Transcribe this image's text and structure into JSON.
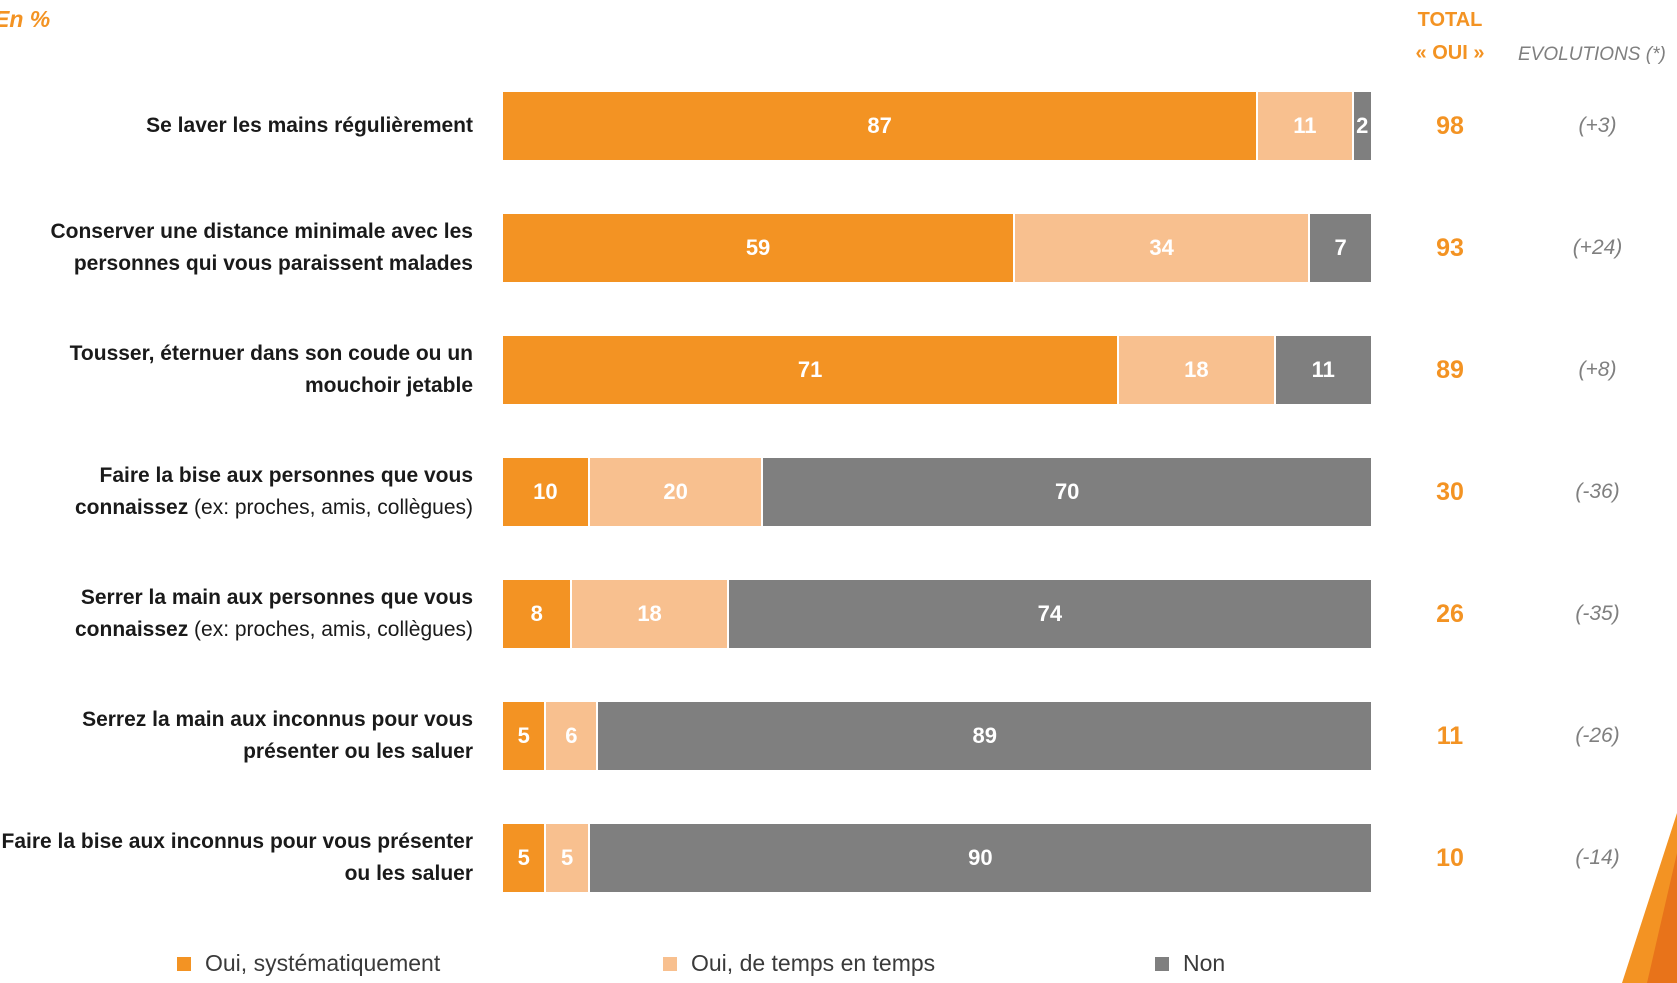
{
  "header": {
    "unit_note": "En %",
    "total_line1": "TOTAL",
    "total_line2": "« OUI »",
    "evolutions": "EVOLUTIONS (*)"
  },
  "colors": {
    "systematic": "#F39323",
    "sometimes": "#F8C08F",
    "no": "#7F7F7F",
    "accent": "#F39323"
  },
  "chart_data": {
    "type": "bar",
    "orientation": "horizontal",
    "stacked": true,
    "xlim": [
      0,
      100
    ],
    "series": [
      {
        "name": "Oui, systématiquement",
        "values": [
          87,
          59,
          71,
          10,
          8,
          5,
          5
        ]
      },
      {
        "name": "Oui, de temps en temps",
        "values": [
          11,
          34,
          18,
          20,
          18,
          6,
          5
        ]
      },
      {
        "name": "Non",
        "values": [
          2,
          7,
          11,
          70,
          74,
          89,
          90
        ]
      }
    ],
    "categories": [
      {
        "bold": "Se laver les mains régulièrement",
        "normal": ""
      },
      {
        "bold": "Conserver une distance minimale avec les personnes qui vous paraissent malades",
        "normal": ""
      },
      {
        "bold": "Tousser, éternuer dans son coude ou un mouchoir jetable",
        "normal": ""
      },
      {
        "bold": "Faire la bise aux personnes que vous connaissez",
        "normal": " (ex: proches, amis, collègues)"
      },
      {
        "bold": "Serrer la main aux personnes que vous connaissez",
        "normal": " (ex: proches, amis, collègues)"
      },
      {
        "bold": "Serrez la main aux inconnus pour vous présenter ou les saluer",
        "normal": ""
      },
      {
        "bold": "Faire la bise aux inconnus pour vous présenter ou les saluer",
        "normal": ""
      }
    ],
    "total_oui": [
      "98",
      "93",
      "89",
      "30",
      "26",
      "11",
      "10"
    ],
    "evolutions": [
      "(+3)",
      "(+24)",
      "(+8)",
      "(-36)",
      "(-35)",
      "(-26)",
      "(-14)"
    ],
    "legend_position": "bottom"
  }
}
